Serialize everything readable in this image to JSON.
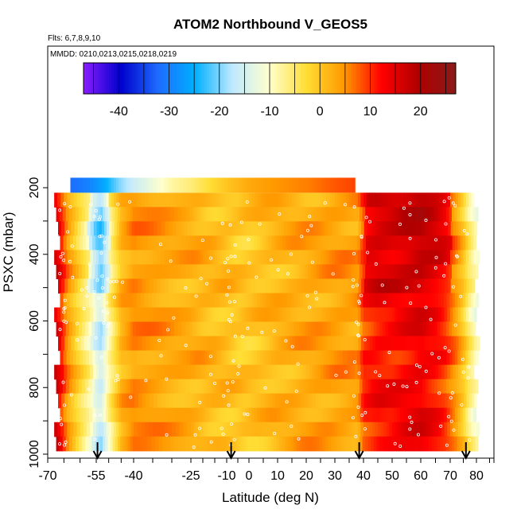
{
  "chart_data": {
    "type": "heatmap",
    "title": "ATOM2 Northbound V_GEOS5",
    "subtitle_flights": "Flts: 6,7,8,9,10",
    "subtitle_dates": "MMDD: 0210,0213,0215,0218,0219",
    "xlabel": "Latitude (deg N)",
    "ylabel": "PSXC (mbar)",
    "xlim": [
      -70,
      85
    ],
    "ylim": [
      1010,
      130
    ],
    "x_ticks": [
      -70,
      -55,
      -40,
      -25,
      -10,
      0,
      10,
      20,
      30,
      40,
      50,
      60,
      70,
      80
    ],
    "y_ticks": [
      200,
      400,
      600,
      800,
      1000
    ],
    "colorbar": {
      "range": [
        -47,
        27
      ],
      "ticks": [
        -40,
        -30,
        -20,
        -10,
        0,
        10,
        20
      ],
      "colors": [
        "#8b1dff",
        "#0000cc",
        "#1e6bff",
        "#00b0ff",
        "#bfe9ff",
        "#ffffcc",
        "#ffdd33",
        "#ff9900",
        "#ff0000",
        "#b00000",
        "#8b1a1a"
      ]
    },
    "profile": {
      "lat": [
        -68,
        -66,
        -64,
        -60,
        -57,
        -55,
        -53,
        -50,
        -45,
        -40,
        -30,
        -20,
        -10,
        -5,
        0,
        5,
        10,
        20,
        30,
        38,
        40,
        45,
        50,
        55,
        60,
        65,
        68,
        72,
        75,
        77,
        80
      ],
      "v": [
        18,
        12,
        5,
        -3,
        -8,
        -14,
        -16,
        -8,
        2,
        5,
        3,
        2,
        1,
        0,
        0,
        1,
        2,
        3,
        4,
        4,
        10,
        12,
        12,
        13,
        14,
        12,
        10,
        5,
        0,
        -5,
        -10
      ]
    },
    "upper_band": {
      "pressure_top": 170,
      "pressure_bottom": 215,
      "lat": [
        -63,
        -58,
        -55,
        -50,
        -46,
        -40,
        -30,
        -20,
        -10,
        0,
        10,
        20,
        30,
        37
      ],
      "v": [
        -32,
        -30,
        -28,
        -24,
        -20,
        -16,
        -8,
        -4,
        0,
        3,
        5,
        6,
        8,
        9
      ]
    },
    "flight_arrows_lat": [
      -54.5,
      -8,
      38.5,
      76
    ]
  }
}
